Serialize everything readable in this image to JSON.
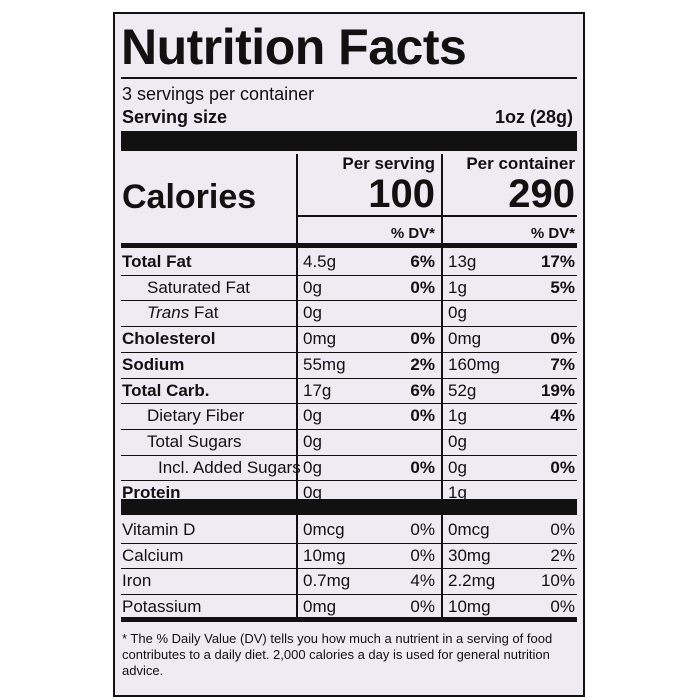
{
  "title": "Nutrition Facts",
  "servings": "3 servings per container",
  "serving_size": {
    "label": "Serving size",
    "value": "1oz (28g)"
  },
  "columns": [
    "Per serving",
    "Per container"
  ],
  "calories": {
    "label": "Calories",
    "values": [
      "100",
      "290"
    ]
  },
  "dv_header": [
    "% DV*",
    "% DV*"
  ],
  "rows": [
    {
      "name": "Total Fat",
      "bold": true,
      "indent": 0,
      "serving": {
        "amount": "4.5g",
        "dv": "6%"
      },
      "container": {
        "amount": "13g",
        "dv": "17%"
      }
    },
    {
      "name": "Saturated Fat",
      "bold": false,
      "indent": 1,
      "serving": {
        "amount": "0g",
        "dv": "0%"
      },
      "container": {
        "amount": "1g",
        "dv": "5%"
      }
    },
    {
      "name_italic": "Trans",
      "name": "Fat",
      "bold": false,
      "indent": 1,
      "serving": {
        "amount": "0g"
      },
      "container": {
        "amount": "0g"
      }
    },
    {
      "name": "Cholesterol",
      "bold": true,
      "indent": 0,
      "serving": {
        "amount": "0mg",
        "dv": "0%"
      },
      "container": {
        "amount": "0mg",
        "dv": "0%"
      }
    },
    {
      "name": "Sodium",
      "bold": true,
      "indent": 0,
      "serving": {
        "amount": "55mg",
        "dv": "2%"
      },
      "container": {
        "amount": "160mg",
        "dv": "7%"
      }
    },
    {
      "name": "Total Carb.",
      "bold": true,
      "indent": 0,
      "serving": {
        "amount": "17g",
        "dv": "6%"
      },
      "container": {
        "amount": "52g",
        "dv": "19%"
      }
    },
    {
      "name": "Dietary Fiber",
      "bold": false,
      "indent": 1,
      "serving": {
        "amount": "0g",
        "dv": "0%"
      },
      "container": {
        "amount": "1g",
        "dv": "4%"
      }
    },
    {
      "name": "Total Sugars",
      "bold": false,
      "indent": 1,
      "serving": {
        "amount": "0g"
      },
      "container": {
        "amount": "0g"
      }
    },
    {
      "name": "Incl. Added Sugars",
      "bold": false,
      "indent": 2,
      "serving": {
        "amount": "0g",
        "dv": "0%"
      },
      "container": {
        "amount": "0g",
        "dv": "0%"
      }
    },
    {
      "name": "Protein",
      "bold": true,
      "indent": 0,
      "serving": {
        "amount": "0g"
      },
      "container": {
        "amount": "1g"
      }
    }
  ],
  "vitamins": [
    {
      "name": "Vitamin D",
      "serving": {
        "amount": "0mcg",
        "dv": "0%"
      },
      "container": {
        "amount": "0mcg",
        "dv": "0%"
      }
    },
    {
      "name": "Calcium",
      "serving": {
        "amount": "10mg",
        "dv": "0%"
      },
      "container": {
        "amount": "30mg",
        "dv": "2%"
      }
    },
    {
      "name": "Iron",
      "serving": {
        "amount": "0.7mg",
        "dv": "4%"
      },
      "container": {
        "amount": "2.2mg",
        "dv": "10%"
      }
    },
    {
      "name": "Potassium",
      "serving": {
        "amount": "0mg",
        "dv": "0%"
      },
      "container": {
        "amount": "10mg",
        "dv": "0%"
      }
    }
  ],
  "footnote": "* The % Daily Value (DV) tells you how much a nutrient in a serving of food contributes to a daily diet. 2,000 calories a day is used for general nutrition advice."
}
